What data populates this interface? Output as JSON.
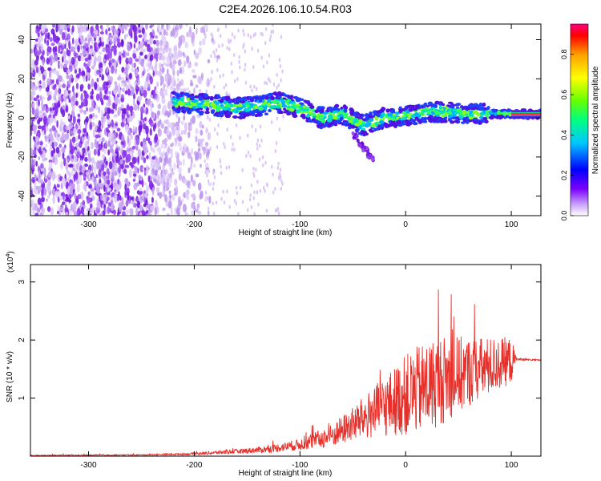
{
  "title": "C2E4.2026.106.10.54.R03",
  "chart_data": [
    {
      "type": "heatmap",
      "xlabel": "Height of straight line (km)",
      "ylabel": "Frequency (Hz)",
      "xlim": [
        -355,
        128
      ],
      "ylim": [
        -50,
        48
      ],
      "xticks": [
        -300,
        -200,
        -100,
        0,
        100
      ],
      "yticks": [
        -40,
        -20,
        0,
        20,
        40
      ],
      "colorbar": {
        "label": "Normalized spectral amplitude",
        "range": [
          0.0,
          0.95
        ],
        "ticks": [
          0.0,
          0.2,
          0.4,
          0.6,
          0.8
        ],
        "tick_labels": [
          "0.0",
          "0.2",
          "0.4",
          "0.6",
          "0.8"
        ],
        "colors": [
          "#ffffff",
          "#c8a0ff",
          "#7a00ff",
          "#0000ff",
          "#00c8ff",
          "#00ff80",
          "#66ff00",
          "#ffff00",
          "#ffa000",
          "#ff0000",
          "#ff0080"
        ]
      },
      "ridge": {
        "x": [
          -220,
          -190,
          -160,
          -140,
          -120,
          -100,
          -80,
          -60,
          -40,
          -20,
          0,
          20,
          40,
          60,
          80,
          100,
          128
        ],
        "freq": [
          8,
          7,
          5,
          6,
          8,
          5,
          0,
          2,
          -4,
          0,
          1,
          3,
          3,
          2,
          2,
          2,
          2
        ]
      }
    },
    {
      "type": "line",
      "xlabel": "Height of straight line (km)",
      "ylabel": "SNR (10 * v/v)",
      "yscale_label": "(x10",
      "yscale_exp": "4",
      "xlim": [
        -355,
        128
      ],
      "ylim": [
        0,
        3.3
      ],
      "xticks": [
        -300,
        -200,
        -100,
        0,
        100
      ],
      "yticks": [
        1,
        2,
        3
      ],
      "series": [
        {
          "name": "SNR",
          "color": "#e8302a",
          "envelope": {
            "x": [
              -355,
              -250,
              -200,
              -160,
              -130,
              -100,
              -70,
              -50,
              -30,
              -10,
              0,
              20,
              40,
              60,
              80,
              100,
              105,
              128
            ],
            "mean": [
              0.01,
              0.02,
              0.04,
              0.08,
              0.12,
              0.2,
              0.35,
              0.55,
              0.75,
              0.95,
              1.05,
              1.2,
              1.35,
              1.45,
              1.55,
              1.65,
              1.67,
              1.65
            ],
            "spread": [
              0.01,
              0.01,
              0.02,
              0.04,
              0.06,
              0.1,
              0.2,
              0.3,
              0.45,
              0.6,
              0.7,
              0.8,
              0.75,
              0.6,
              0.5,
              0.4,
              0.02,
              0.01
            ]
          }
        }
      ]
    }
  ]
}
